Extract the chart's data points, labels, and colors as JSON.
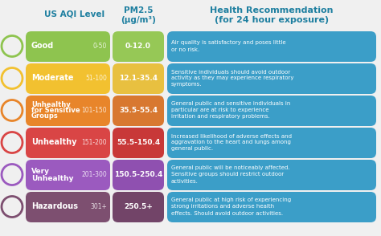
{
  "background_color": "#f0f0f0",
  "header_color": "#1e7fa0",
  "col1_header": "US AQI Level",
  "col2_header": "PM2.5\n(μg/m³)",
  "col3_header": "Health Recommendation\n(for 24 hour exposure)",
  "blue_box_color": "#3b9ec8",
  "rows": [
    {
      "label": "Good",
      "aqi_range": "0-50",
      "pm25": "0-12.0",
      "health": "Air quality is satisfactory and poses little\nor no risk.",
      "color": "#8ec44f",
      "pm25_color": "#96c856"
    },
    {
      "label": "Moderate",
      "aqi_range": "51-100",
      "pm25": "12.1-35.4",
      "health": "Sensitive individuals should avoid outdoor\nactivity as they may experience respiratory\nsymptoms.",
      "color": "#f2c130",
      "pm25_color": "#e8c040"
    },
    {
      "label": "Unhealthy\nfor Sensitive\nGroups",
      "aqi_range": "101-150",
      "pm25": "35.5-55.4",
      "health": "General public and sensitive individuals in\nparticular are at risk to experience\nirritation and respiratory problems.",
      "color": "#e8852a",
      "pm25_color": "#d87830"
    },
    {
      "label": "Unhealthy",
      "aqi_range": "151-200",
      "pm25": "55.5-150.4",
      "health": "Increased likelihood of adverse effects and\naggravation to the heart and lungs among\ngeneral public.",
      "color": "#d94545",
      "pm25_color": "#c83838"
    },
    {
      "label": "Very\nUnhealthy",
      "aqi_range": "201-300",
      "pm25": "150.5-250.4",
      "health": "General public will be noticeably affected.\nSensitive groups should restrict outdoor\nactivities.",
      "color": "#9b5abf",
      "pm25_color": "#8f50b0"
    },
    {
      "label": "Hazardous",
      "aqi_range": "301+",
      "pm25": "250.5+",
      "health": "General public at high risk of experiencing\nstrong irritations and adverse health\neffects. Should avoid outdoor activities.",
      "color": "#7d4f70",
      "pm25_color": "#724468"
    }
  ]
}
